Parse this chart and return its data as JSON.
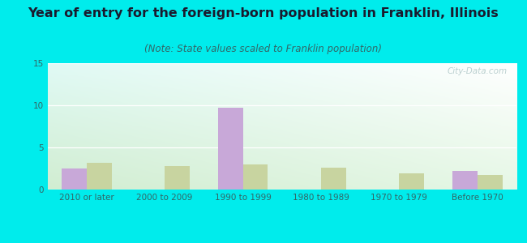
{
  "title": "Year of entry for the foreign-born population in Franklin, Illinois",
  "subtitle": "(Note: State values scaled to Franklin population)",
  "categories": [
    "2010 or later",
    "2000 to 2009",
    "1990 to 1999",
    "1980 to 1989",
    "1970 to 1979",
    "Before 1970"
  ],
  "franklin_values": [
    2.5,
    0,
    9.7,
    0,
    0,
    2.2
  ],
  "illinois_values": [
    3.2,
    2.8,
    3.0,
    2.6,
    1.9,
    1.7
  ],
  "franklin_color": "#c8a8d8",
  "illinois_color": "#c8d4a0",
  "background_outer": "#00ecec",
  "ylim": [
    0,
    15
  ],
  "yticks": [
    0,
    5,
    10,
    15
  ],
  "bar_width": 0.32,
  "title_fontsize": 11.5,
  "subtitle_fontsize": 8.5,
  "tick_fontsize": 7.5,
  "legend_fontsize": 9,
  "watermark": "City-Data.com",
  "grid_color": "#dddddd",
  "title_color": "#1a1a2e",
  "subtitle_color": "#336666",
  "tick_color": "#336666"
}
